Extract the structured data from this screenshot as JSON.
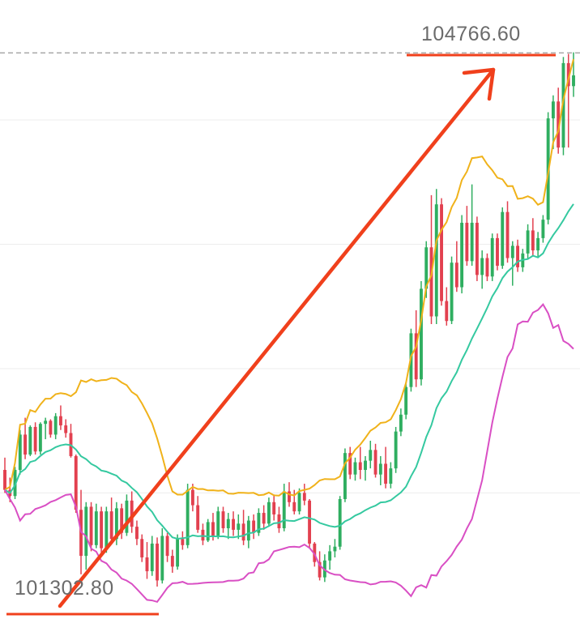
{
  "chart_data": {
    "type": "candlestick",
    "annotations": {
      "high_label": "104766.60",
      "low_label": "101302.80",
      "high_price": 104766.6,
      "low_price": 101302.8
    },
    "ylim": [
      101100,
      104900
    ],
    "gridlines": [
      104330,
      103520,
      102710,
      101900
    ],
    "current_price": 104766.6,
    "colors": {
      "up": "#2fae60",
      "down": "#e2404f",
      "upper_band": "#f0b21a",
      "middle_band": "#35c9a0",
      "lower_band": "#d94fc4",
      "arrow": "#f0401c",
      "grid": "#ededed",
      "dashed": "#9a9a9a"
    },
    "candles": [
      [
        102050,
        102130,
        101900,
        101920
      ],
      [
        101920,
        102000,
        101840,
        101880
      ],
      [
        101880,
        102070,
        101860,
        102050
      ],
      [
        102050,
        102310,
        102020,
        102280
      ],
      [
        102280,
        102390,
        102120,
        102150
      ],
      [
        102150,
        102340,
        102140,
        102330
      ],
      [
        102330,
        102360,
        102150,
        102170
      ],
      [
        102170,
        102360,
        102150,
        102350
      ],
      [
        102350,
        102390,
        102250,
        102370
      ],
      [
        102370,
        102380,
        102260,
        102280
      ],
      [
        102280,
        102420,
        102250,
        102400
      ],
      [
        102400,
        102470,
        102310,
        102340
      ],
      [
        102340,
        102380,
        102260,
        102290
      ],
      [
        102290,
        102350,
        102130,
        102140
      ],
      [
        102140,
        102150,
        101770,
        101790
      ],
      [
        101790,
        101920,
        101370,
        101490
      ],
      [
        101490,
        101840,
        101400,
        101810
      ],
      [
        101810,
        101840,
        101520,
        101560
      ],
      [
        101560,
        101830,
        101540,
        101780
      ],
      [
        101780,
        101810,
        101510,
        101540
      ],
      [
        101540,
        101810,
        101510,
        101780
      ],
      [
        101780,
        101870,
        101570,
        101600
      ],
      [
        101600,
        101840,
        101560,
        101800
      ],
      [
        101800,
        101830,
        101600,
        101640
      ],
      [
        101640,
        101890,
        101620,
        101850
      ],
      [
        101850,
        101910,
        101640,
        101680
      ],
      [
        101680,
        101720,
        101560,
        101600
      ],
      [
        101600,
        101630,
        101450,
        101480
      ],
      [
        101480,
        101580,
        101340,
        101390
      ],
      [
        101390,
        101620,
        101360,
        101570
      ],
      [
        101570,
        101610,
        101290,
        101330
      ],
      [
        101330,
        101670,
        101310,
        101620
      ],
      [
        101620,
        101640,
        101450,
        101490
      ],
      [
        101490,
        101530,
        101380,
        101420
      ],
      [
        101420,
        101630,
        101400,
        101600
      ],
      [
        101600,
        101650,
        101530,
        101560
      ],
      [
        101560,
        101960,
        101540,
        101920
      ],
      [
        101920,
        101960,
        101780,
        101820
      ],
      [
        101820,
        101880,
        101640,
        101660
      ],
      [
        101660,
        101700,
        101560,
        101590
      ],
      [
        101590,
        101730,
        101580,
        101710
      ],
      [
        101710,
        101770,
        101590,
        101620
      ],
      [
        101620,
        101810,
        101600,
        101780
      ],
      [
        101780,
        101810,
        101640,
        101670
      ],
      [
        101670,
        101770,
        101600,
        101730
      ],
      [
        101730,
        101780,
        101620,
        101660
      ],
      [
        101660,
        101760,
        101600,
        101700
      ],
      [
        101700,
        101790,
        101560,
        101590
      ],
      [
        101590,
        101750,
        101540,
        101720
      ],
      [
        101720,
        101760,
        101600,
        101640
      ],
      [
        101640,
        101800,
        101620,
        101770
      ],
      [
        101770,
        101820,
        101660,
        101700
      ],
      [
        101700,
        101870,
        101680,
        101840
      ],
      [
        101840,
        101890,
        101720,
        101760
      ],
      [
        101760,
        101810,
        101640,
        101670
      ],
      [
        101670,
        101960,
        101650,
        101910
      ],
      [
        101910,
        101970,
        101810,
        101840
      ],
      [
        101840,
        101920,
        101760,
        101780
      ],
      [
        101780,
        101930,
        101760,
        101900
      ],
      [
        101900,
        101960,
        101820,
        101850
      ],
      [
        101850,
        101860,
        101540,
        101570
      ],
      [
        101570,
        101580,
        101420,
        101450
      ],
      [
        101450,
        101520,
        101330,
        101350
      ],
      [
        101350,
        101500,
        101320,
        101460
      ],
      [
        101460,
        101560,
        101400,
        101520
      ],
      [
        101520,
        101600,
        101480,
        101550
      ],
      [
        101550,
        101880,
        101530,
        101860
      ],
      [
        101860,
        102190,
        101840,
        102160
      ],
      [
        102160,
        102200,
        101990,
        102020
      ],
      [
        102020,
        102130,
        101980,
        102100
      ],
      [
        102100,
        102200,
        101990,
        102050
      ],
      [
        102050,
        102140,
        101980,
        102110
      ],
      [
        102110,
        102240,
        102060,
        102180
      ],
      [
        102180,
        102220,
        102000,
        102020
      ],
      [
        102020,
        102140,
        101950,
        102090
      ],
      [
        102090,
        102200,
        101930,
        101960
      ],
      [
        101960,
        102100,
        101930,
        102060
      ],
      [
        102060,
        102330,
        102030,
        102300
      ],
      [
        102300,
        102450,
        102270,
        102410
      ],
      [
        102410,
        102620,
        102380,
        102590
      ],
      [
        102590,
        102970,
        102560,
        102940
      ],
      [
        102940,
        103090,
        102590,
        102640
      ],
      [
        102640,
        103280,
        102600,
        103230
      ],
      [
        103230,
        103540,
        103170,
        103500
      ],
      [
        103500,
        103840,
        103000,
        103050
      ],
      [
        103050,
        103880,
        103000,
        103780
      ],
      [
        103780,
        103820,
        103120,
        103150
      ],
      [
        103150,
        103240,
        102990,
        103020
      ],
      [
        103020,
        103440,
        103000,
        103400
      ],
      [
        103400,
        103540,
        103210,
        103240
      ],
      [
        103240,
        103710,
        103200,
        103660
      ],
      [
        103660,
        103770,
        103380,
        103410
      ],
      [
        103410,
        103910,
        103380,
        103660
      ],
      [
        103660,
        103700,
        103280,
        103320
      ],
      [
        103320,
        103480,
        103230,
        103430
      ],
      [
        103430,
        103460,
        103280,
        103310
      ],
      [
        103310,
        103590,
        103280,
        103560
      ],
      [
        103560,
        103590,
        103350,
        103380
      ],
      [
        103380,
        103760,
        103360,
        103730
      ],
      [
        103730,
        103800,
        103400,
        103430
      ],
      [
        103430,
        103540,
        103250,
        103510
      ],
      [
        103510,
        103550,
        103340,
        103370
      ],
      [
        103370,
        103490,
        103340,
        103460
      ],
      [
        103460,
        103650,
        103420,
        103610
      ],
      [
        103610,
        103690,
        103440,
        103480
      ],
      [
        103480,
        103600,
        103440,
        103560
      ],
      [
        103560,
        103710,
        103530,
        103680
      ],
      [
        103680,
        104380,
        103650,
        104340
      ],
      [
        104340,
        104490,
        104140,
        104450
      ],
      [
        104450,
        104540,
        104110,
        104150
      ],
      [
        104150,
        104740,
        104100,
        104700
      ],
      [
        104700,
        104760,
        104150,
        104550
      ],
      [
        104550,
        104770,
        104480,
        104620
      ]
    ]
  }
}
